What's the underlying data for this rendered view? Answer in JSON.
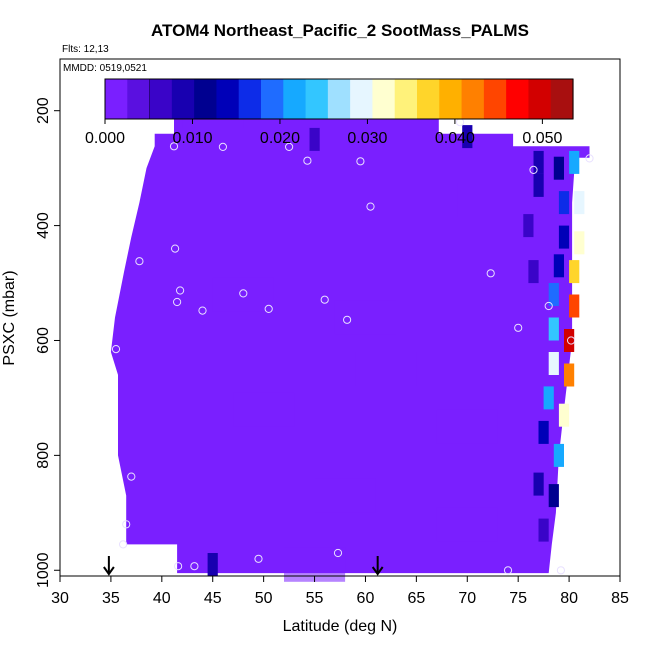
{
  "chart_data": {
    "type": "heatmap",
    "title": "ATOM4 Northeast_Pacific_2 SootMass_PALMS",
    "subtitle_flights": "Flts: 12,13",
    "subtitle_dates": "MMDD: 0519,0521",
    "xlabel": "Latitude (deg N)",
    "ylabel": "PSXC (mbar)",
    "xlim": [
      30,
      85
    ],
    "ylim": [
      1010,
      110
    ],
    "x_ticks": [
      "30",
      "35",
      "40",
      "45",
      "50",
      "55",
      "60",
      "65",
      "70",
      "75",
      "80",
      "85"
    ],
    "y_ticks": [
      "200",
      "400",
      "600",
      "800",
      "1000"
    ],
    "colorbar": {
      "range": [
        0,
        0.0535
      ],
      "tick_labels": [
        "0.000",
        "0.010",
        "0.020",
        "0.030",
        "0.040",
        "0.050"
      ],
      "colors": [
        "#7a1fff",
        "#5a10e0",
        "#3a04c8",
        "#1800b0",
        "#000090",
        "#0000b8",
        "#0d2ce8",
        "#1f6cff",
        "#16a9ff",
        "#33c6ff",
        "#9fe0ff",
        "#e6f6ff",
        "#ffffd0",
        "#fff27a",
        "#ffd52a",
        "#ffb000",
        "#ff8000",
        "#ff4500",
        "#ff0000",
        "#d20000",
        "#a80f0f"
      ]
    },
    "cells": [
      [
        45,
        200,
        0.001
      ],
      [
        55,
        250,
        0.006
      ],
      [
        70,
        245,
        0.008
      ],
      [
        66,
        355,
        0.001
      ],
      [
        77,
        290,
        0.009
      ],
      [
        79,
        300,
        0.012
      ],
      [
        80.5,
        290,
        0.021
      ],
      [
        77,
        330,
        0.008
      ],
      [
        79.5,
        360,
        0.017
      ],
      [
        81,
        360,
        0.029
      ],
      [
        76,
        400,
        0.007
      ],
      [
        79.5,
        420,
        0.013
      ],
      [
        81,
        430,
        0.031
      ],
      [
        76.5,
        480,
        0.007
      ],
      [
        79,
        470,
        0.014
      ],
      [
        80.5,
        480,
        0.038
      ],
      [
        78.5,
        520,
        0.018
      ],
      [
        80.5,
        540,
        0.045
      ],
      [
        78.5,
        580,
        0.024
      ],
      [
        80,
        600,
        0.049
      ],
      [
        78.5,
        640,
        0.03
      ],
      [
        80,
        660,
        0.041
      ],
      [
        78,
        700,
        0.022
      ],
      [
        79.5,
        730,
        0.033
      ],
      [
        77.5,
        760,
        0.013
      ],
      [
        79,
        800,
        0.021
      ],
      [
        77,
        850,
        0.008
      ],
      [
        78.5,
        870,
        0.012
      ],
      [
        77.5,
        930,
        0.006
      ],
      [
        45,
        990,
        0.009
      ],
      [
        55,
        990,
        0.001
      ],
      [
        48,
        520,
        0.0005
      ],
      [
        60,
        560,
        0.0006
      ],
      [
        50,
        720,
        0.0007
      ],
      [
        62,
        650,
        0.0008
      ],
      [
        70,
        750,
        0.001
      ],
      [
        58,
        870,
        0.001
      ],
      [
        70,
        920,
        0.0012
      ]
    ],
    "points": [
      [
        39.5,
        197
      ],
      [
        41.2,
        262
      ],
      [
        46,
        263
      ],
      [
        52.5,
        263
      ],
      [
        54.3,
        287
      ],
      [
        59.5,
        288
      ],
      [
        64,
        192
      ],
      [
        66.8,
        190
      ],
      [
        69.3,
        220
      ],
      [
        76.5,
        303
      ],
      [
        82,
        283
      ],
      [
        60.5,
        367
      ],
      [
        37.8,
        462
      ],
      [
        41.3,
        440
      ],
      [
        41.8,
        513
      ],
      [
        41.5,
        533
      ],
      [
        44,
        548
      ],
      [
        48,
        518
      ],
      [
        50.5,
        545
      ],
      [
        56,
        529
      ],
      [
        58.2,
        564
      ],
      [
        72.3,
        483
      ],
      [
        75,
        578
      ],
      [
        78,
        540
      ],
      [
        80.2,
        600
      ],
      [
        35.5,
        615
      ],
      [
        37,
        837
      ],
      [
        36.5,
        920
      ],
      [
        36.2,
        955
      ],
      [
        41.6,
        993
      ],
      [
        43.2,
        993
      ],
      [
        49.5,
        980
      ],
      [
        57.3,
        970
      ],
      [
        74,
        1000
      ],
      [
        79.2,
        1000
      ]
    ],
    "arrows": [
      34.8,
      61.2
    ]
  }
}
